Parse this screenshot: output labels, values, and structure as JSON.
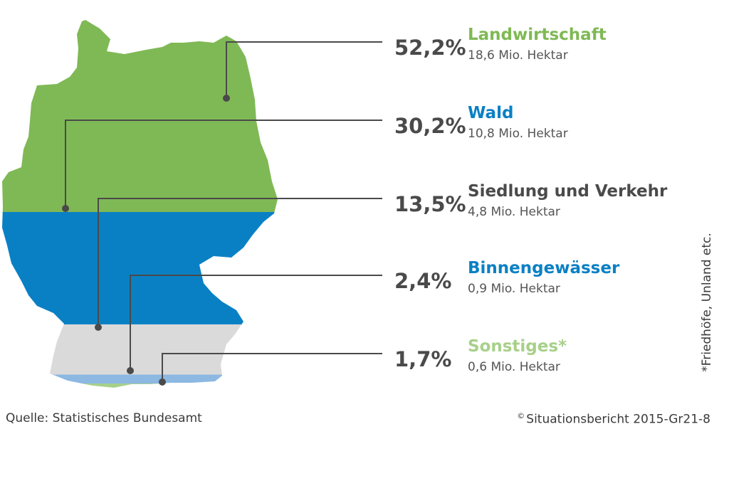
{
  "chart_data": {
    "type": "pie",
    "categories": [
      "Landwirtschaft",
      "Wald",
      "Siedlung und Verkehr",
      "Binnengewässer",
      "Sonstiges*"
    ],
    "values": [
      52.2,
      30.2,
      13.5,
      2.4,
      1.7
    ],
    "value_labels": [
      "52,2%",
      "30,2%",
      "13,5%",
      "2,4%",
      "1,7%"
    ],
    "area_labels": [
      "18,6 Mio. Hektar",
      "10,8 Mio. Hektar",
      "4,8 Mio. Hektar",
      "0,9 Mio. Hektar",
      "0,6 Mio. Hektar"
    ],
    "colors": [
      "#7fb955",
      "#0a80c4",
      "#dadada",
      "#8cb8e2",
      "#a7d08a"
    ],
    "label_colors": [
      "#7fb955",
      "#0a80c4",
      "#4a4a4a",
      "#0a80c4",
      "#a7d08a"
    ],
    "legend": "right",
    "map_icon": "germany-map"
  },
  "footer": {
    "source": "Quelle: Statistisches Bundesamt",
    "copyright_symbol": "©",
    "copyright": "Situationsbericht 2015-Gr21-8"
  },
  "side_note": "*Friedhöfe, Unland etc."
}
